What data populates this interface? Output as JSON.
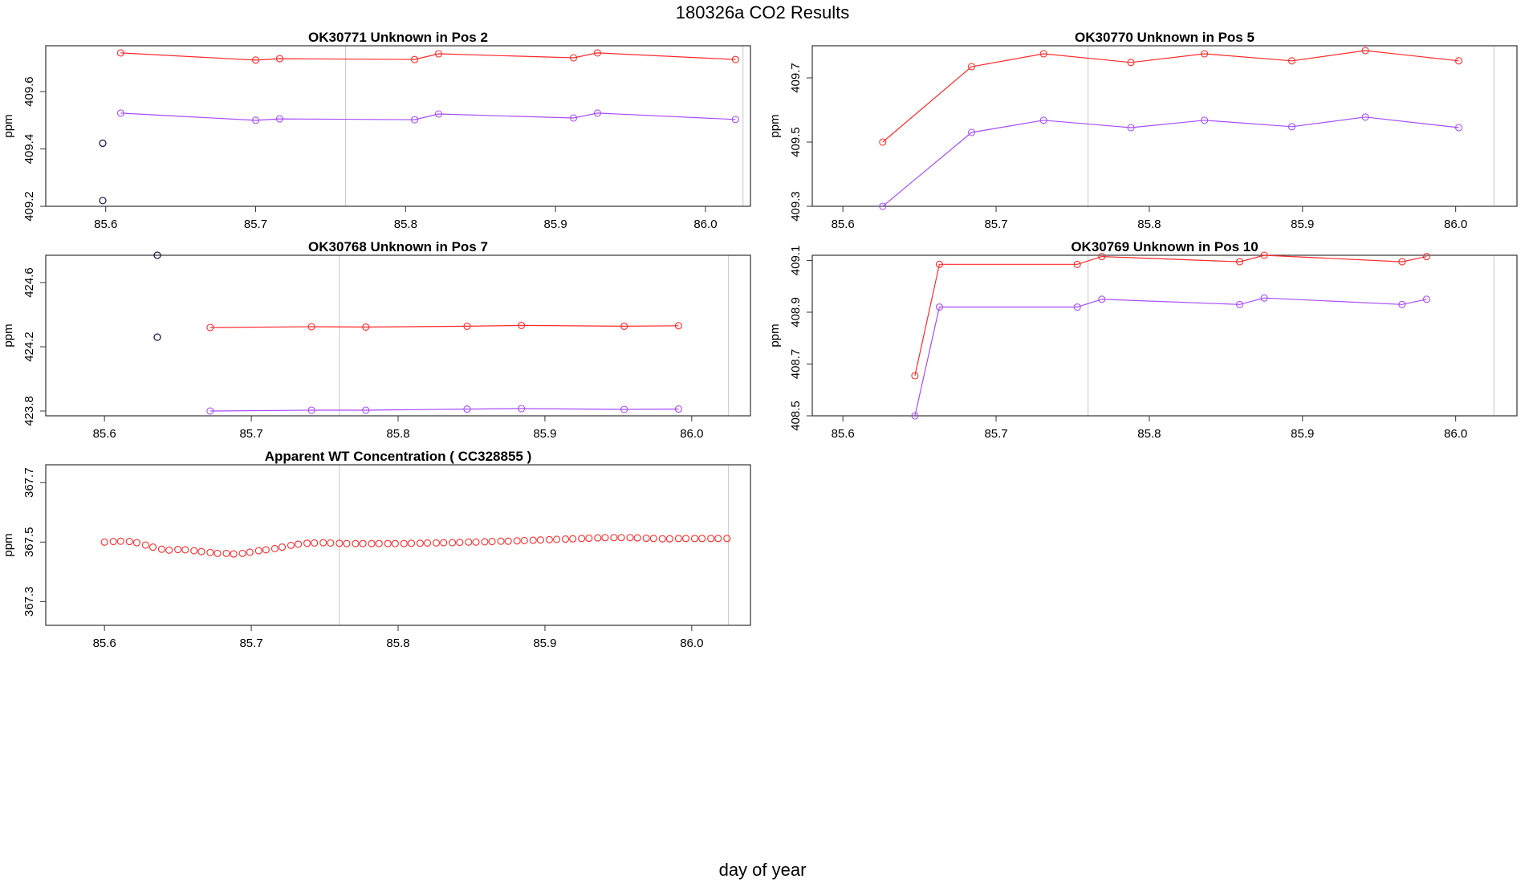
{
  "page": {
    "title": "180326a  CO2 Results",
    "xlabel": "day of year"
  },
  "colors": {
    "red": "#ff2a2a",
    "purple": "#a64dff",
    "dark": "#2b1a4f",
    "vline": "#cfcfcf"
  },
  "chart_data": [
    {
      "type": "line",
      "title": "OK30771    Unknown in Pos 2",
      "ylabel": "ppm",
      "xlim": [
        85.56,
        86.03
      ],
      "ylim": [
        409.2,
        409.76
      ],
      "xticks": [
        "85.6",
        "85.7",
        "85.8",
        "85.9",
        "86.0"
      ],
      "yticks": [
        "409.2",
        "409.4",
        "409.6"
      ],
      "vlines": [
        85.76,
        86.025
      ],
      "series": [
        {
          "color": "red",
          "x": [
            85.61,
            85.7,
            85.716,
            85.806,
            85.822,
            85.912,
            85.928,
            86.02
          ],
          "y": [
            409.735,
            409.71,
            409.715,
            409.712,
            409.732,
            409.718,
            409.735,
            409.712
          ]
        },
        {
          "color": "purple",
          "x": [
            85.61,
            85.7,
            85.716,
            85.806,
            85.822,
            85.912,
            85.928,
            86.02
          ],
          "y": [
            409.525,
            409.5,
            409.505,
            409.502,
            409.522,
            409.508,
            409.525,
            409.503
          ]
        }
      ],
      "points": [
        {
          "color": "dark",
          "x": 85.598,
          "y": 409.42
        },
        {
          "color": "dark",
          "x": 85.598,
          "y": 409.22
        }
      ]
    },
    {
      "type": "line",
      "title": "OK30770    Unknown in Pos 5",
      "ylabel": "ppm",
      "xlim": [
        85.58,
        86.04
      ],
      "ylim": [
        409.3,
        409.8
      ],
      "xticks": [
        "85.6",
        "85.7",
        "85.8",
        "85.9",
        "86.0"
      ],
      "yticks": [
        "409.3",
        "409.5",
        "409.7"
      ],
      "vlines": [
        85.76,
        86.025
      ],
      "series": [
        {
          "color": "red",
          "x": [
            85.626,
            85.684,
            85.731,
            85.788,
            85.836,
            85.893,
            85.941,
            86.002
          ],
          "y": [
            409.5,
            409.735,
            409.775,
            409.748,
            409.775,
            409.753,
            409.785,
            409.753
          ]
        },
        {
          "color": "purple",
          "x": [
            85.626,
            85.684,
            85.731,
            85.788,
            85.836,
            85.893,
            85.941,
            86.002
          ],
          "y": [
            409.3,
            409.53,
            409.568,
            409.545,
            409.568,
            409.548,
            409.578,
            409.545
          ]
        }
      ]
    },
    {
      "type": "line",
      "title": "OK30768    Unknown in Pos 7",
      "ylabel": "ppm",
      "xlim": [
        85.56,
        86.04
      ],
      "ylim": [
        423.77,
        424.77
      ],
      "xticks": [
        "85.6",
        "85.7",
        "85.8",
        "85.9",
        "86.0"
      ],
      "yticks": [
        "423.8",
        "424.2",
        "424.6"
      ],
      "vlines": [
        85.76,
        86.025
      ],
      "series": [
        {
          "color": "red",
          "x": [
            85.672,
            85.741,
            85.778,
            85.847,
            85.884,
            85.954,
            85.991
          ],
          "y": [
            424.32,
            424.325,
            424.323,
            424.328,
            424.333,
            424.328,
            424.331
          ]
        },
        {
          "color": "purple",
          "x": [
            85.672,
            85.741,
            85.778,
            85.847,
            85.884,
            85.954,
            85.991
          ],
          "y": [
            423.8,
            423.805,
            423.805,
            423.812,
            423.815,
            423.81,
            423.812
          ]
        }
      ],
      "points": [
        {
          "color": "dark",
          "x": 85.636,
          "y": 424.77
        },
        {
          "color": "dark",
          "x": 85.636,
          "y": 424.26
        }
      ]
    },
    {
      "type": "line",
      "title": "OK30769    Unknown in Pos 10",
      "ylabel": "ppm",
      "xlim": [
        85.58,
        86.04
      ],
      "ylim": [
        408.5,
        409.12
      ],
      "xticks": [
        "85.6",
        "85.7",
        "85.8",
        "85.9",
        "86.0"
      ],
      "yticks": [
        "408.5",
        "408.7",
        "408.9",
        "409.1"
      ],
      "vlines": [
        85.76,
        86.025
      ],
      "series": [
        {
          "color": "red",
          "x": [
            85.647,
            85.663,
            85.753,
            85.769,
            85.859,
            85.875,
            85.965,
            85.981
          ],
          "y": [
            408.655,
            409.085,
            409.085,
            409.115,
            409.095,
            409.12,
            409.095,
            409.115
          ]
        },
        {
          "color": "purple",
          "x": [
            85.647,
            85.663,
            85.753,
            85.769,
            85.859,
            85.875,
            85.965,
            85.981
          ],
          "y": [
            408.5,
            408.92,
            408.92,
            408.95,
            408.93,
            408.955,
            408.93,
            408.95
          ]
        }
      ]
    },
    {
      "type": "scatter",
      "title": "Apparent WT Concentration ( CC328855 )",
      "ylabel": "ppm",
      "xlim": [
        85.56,
        86.04
      ],
      "ylim": [
        367.22,
        367.76
      ],
      "xticks": [
        "85.6",
        "85.7",
        "85.8",
        "85.9",
        "86.0"
      ],
      "yticks": [
        "367.3",
        "367.5",
        "367.7"
      ],
      "vlines": [
        85.76,
        86.025
      ],
      "series": [
        {
          "color": "red",
          "x": [
            85.6,
            85.606,
            85.611,
            85.617,
            85.622,
            85.628,
            85.633,
            85.639,
            85.644,
            85.65,
            85.655,
            85.661,
            85.666,
            85.672,
            85.677,
            85.683,
            85.688,
            85.694,
            85.699,
            85.705,
            85.71,
            85.716,
            85.721,
            85.727,
            85.732,
            85.738,
            85.743,
            85.749,
            85.754,
            85.76,
            85.765,
            85.771,
            85.776,
            85.782,
            85.787,
            85.793,
            85.798,
            85.804,
            85.809,
            85.815,
            85.82,
            85.826,
            85.831,
            85.837,
            85.842,
            85.848,
            85.853,
            85.859,
            85.864,
            85.87,
            85.875,
            85.881,
            85.886,
            85.892,
            85.897,
            85.903,
            85.908,
            85.914,
            85.919,
            85.925,
            85.93,
            85.936,
            85.941,
            85.947,
            85.952,
            85.958,
            85.963,
            85.969,
            85.974,
            85.98,
            85.985,
            85.991,
            85.996,
            86.002,
            86.007,
            86.013,
            86.018,
            86.024
          ],
          "y": [
            367.5,
            367.502,
            367.503,
            367.502,
            367.498,
            367.49,
            367.483,
            367.476,
            367.473,
            367.475,
            367.474,
            367.471,
            367.468,
            367.465,
            367.462,
            367.462,
            367.46,
            367.462,
            367.466,
            367.471,
            367.474,
            367.478,
            367.483,
            367.489,
            367.493,
            367.496,
            367.497,
            367.498,
            367.497,
            367.496,
            367.495,
            367.495,
            367.495,
            367.495,
            367.495,
            367.495,
            367.495,
            367.495,
            367.496,
            367.496,
            367.497,
            367.497,
            367.498,
            367.498,
            367.499,
            367.5,
            367.5,
            367.501,
            367.502,
            367.503,
            367.503,
            367.504,
            367.505,
            367.506,
            367.507,
            367.508,
            367.509,
            367.51,
            367.511,
            367.512,
            367.513,
            367.514,
            367.515,
            367.515,
            367.515,
            367.515,
            367.514,
            367.513,
            367.512,
            367.511,
            367.511,
            367.512,
            367.512,
            367.512,
            367.512,
            367.512,
            367.512,
            367.512
          ]
        }
      ]
    }
  ]
}
